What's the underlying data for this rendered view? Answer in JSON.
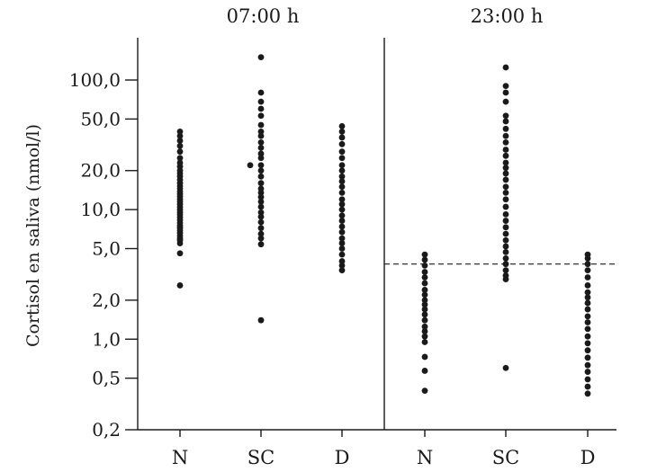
{
  "chart_data": {
    "type": "scatter",
    "ylabel": "Cortisol en saliva (nmol/l)",
    "yscale": "log",
    "ylim": [
      0.2,
      200
    ],
    "yticks": [
      {
        "value": 0.2,
        "label": "0,2"
      },
      {
        "value": 0.5,
        "label": "0,5"
      },
      {
        "value": 1.0,
        "label": "1,0"
      },
      {
        "value": 2.0,
        "label": "2,0"
      },
      {
        "value": 5.0,
        "label": "5,0"
      },
      {
        "value": 10.0,
        "label": "10,0"
      },
      {
        "value": 20.0,
        "label": "20,0"
      },
      {
        "value": 50.0,
        "label": "50,0"
      },
      {
        "value": 100.0,
        "label": "100,0"
      }
    ],
    "panels": [
      {
        "title": "07:00 h",
        "categories": [
          {
            "name": "N",
            "values": [
              2.6,
              4.6,
              5.5,
              5.8,
              6.0,
              6.3,
              6.6,
              6.9,
              7.2,
              7.5,
              7.9,
              8.3,
              8.7,
              9.1,
              9.5,
              10.0,
              10.5,
              11.0,
              11.5,
              12.0,
              12.6,
              13.2,
              13.8,
              14.5,
              15.2,
              16.0,
              17.0,
              18.0,
              19.0,
              20.0,
              21.5,
              23.0,
              25.0,
              28.0,
              31.0,
              34.0,
              37.0,
              40.0
            ]
          },
          {
            "name": "SC",
            "values": [
              1.4,
              5.4,
              6.0,
              6.5,
              7.2,
              8.0,
              8.8,
              9.5,
              10.5,
              11.5,
              12.5,
              13.5,
              14.5,
              16.0,
              18.0,
              20.0,
              22.0,
              25.0,
              27.0,
              30.0,
              33.0,
              37.0,
              40.0,
              45.0,
              53.0,
              60.0,
              68.0,
              80.0,
              150.0
            ],
            "extra": [
              {
                "dx": -12,
                "value": 22.0
              }
            ]
          },
          {
            "name": "D",
            "values": [
              3.4,
              3.7,
              4.0,
              4.5,
              5.0,
              5.5,
              6.0,
              6.7,
              7.4,
              8.2,
              9.0,
              10.0,
              11.0,
              12.0,
              13.5,
              15.0,
              16.5,
              18.0,
              20.0,
              22.0,
              25.0,
              28.0,
              32.0,
              36.0,
              40.0,
              44.0
            ]
          }
        ]
      },
      {
        "title": "23:00 h",
        "threshold": 3.8,
        "categories": [
          {
            "name": "N",
            "values": [
              0.4,
              0.57,
              0.73,
              0.95,
              1.05,
              1.15,
              1.25,
              1.4,
              1.55,
              1.7,
              1.85,
              2.0,
              2.2,
              2.4,
              2.7,
              3.0,
              3.3,
              3.7,
              4.1,
              4.5
            ]
          },
          {
            "name": "SC",
            "values": [
              0.6,
              2.9,
              3.1,
              3.4,
              3.8,
              4.2,
              4.7,
              5.2,
              5.8,
              6.5,
              7.3,
              8.2,
              9.2,
              10.5,
              12.0,
              13.5,
              15.0,
              17.0,
              19.0,
              21.0,
              23.0,
              26.0,
              29.0,
              33.0,
              37.0,
              42.0,
              48.0,
              53.0,
              68.0,
              80.0,
              90.0,
              125.0
            ]
          },
          {
            "name": "D",
            "values": [
              0.38,
              0.43,
              0.49,
              0.56,
              0.63,
              0.72,
              0.82,
              0.93,
              1.05,
              1.2,
              1.35,
              1.5,
              1.7,
              1.9,
              2.1,
              2.3,
              2.6,
              3.0,
              3.4,
              3.8,
              4.2,
              4.5
            ]
          }
        ]
      }
    ]
  }
}
